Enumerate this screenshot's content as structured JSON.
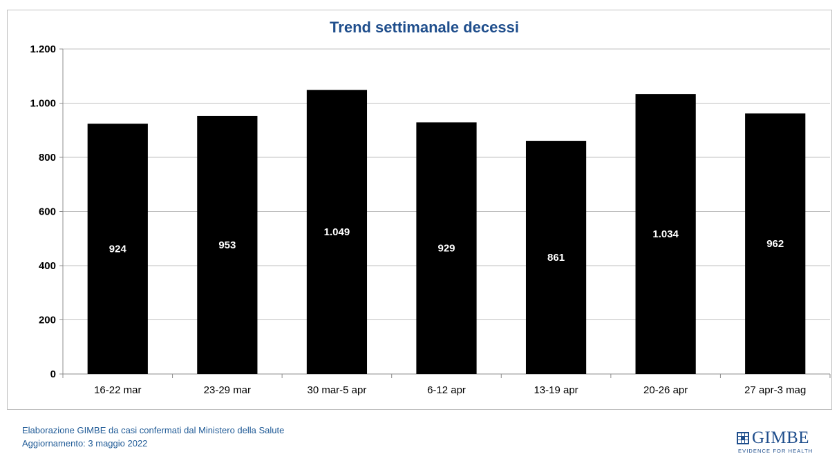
{
  "chart_data": {
    "type": "bar",
    "title": "Trend settimanale decessi",
    "categories": [
      "16-22 mar",
      "23-29 mar",
      "30 mar-5 apr",
      "6-12 apr",
      "13-19 apr",
      "20-26 apr",
      "27 apr-3 mag"
    ],
    "values": [
      924,
      953,
      1049,
      929,
      861,
      1034,
      962
    ],
    "data_labels": [
      "924",
      "953",
      "1.049",
      "929",
      "861",
      "1.034",
      "962"
    ],
    "yticks": [
      0,
      200,
      400,
      600,
      800,
      1000,
      1200
    ],
    "ytick_labels": [
      "0",
      "200",
      "400",
      "600",
      "800",
      "1.000",
      "1.200"
    ],
    "ylim": [
      0,
      1200
    ],
    "xlabel": "",
    "ylabel": "",
    "grid": true,
    "bar_color": "#000000",
    "label_color": "#ffffff",
    "title_color": "#1f4e8c"
  },
  "footer": {
    "line1": "Elaborazione GIMBE da casi confermati dal Ministero della Salute",
    "line2": "Aggiornamento: 3 maggio 2022"
  },
  "logo": {
    "name": "GIMBE",
    "tagline": "EVIDENCE FOR HEALTH",
    "color": "#1f4e8c"
  }
}
